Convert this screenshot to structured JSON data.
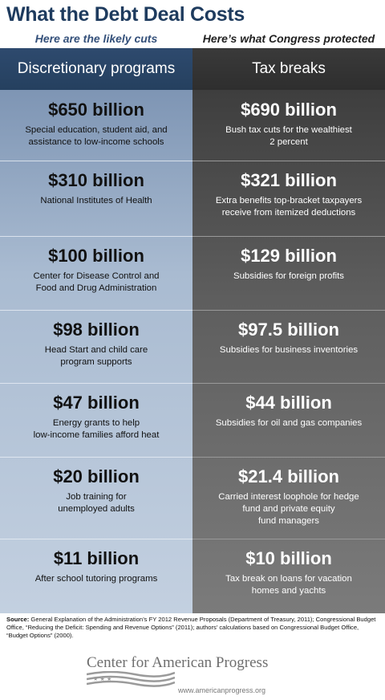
{
  "header": {
    "title": "What the Debt Deal Costs",
    "left_subhead": "Here are the likely cuts",
    "right_subhead": "Here’s what Congress protected",
    "left_column": "Discretionary programs",
    "right_column": "Tax breaks"
  },
  "chart_data": {
    "type": "table",
    "title": "What the Debt Deal Costs",
    "columns": [
      "Discretionary programs",
      "Tax breaks"
    ],
    "rows": [
      {
        "cut": {
          "amount": "$650 billion",
          "value_billion": 650,
          "desc": [
            "Special education, student aid, and",
            "assistance to low-income schools"
          ]
        },
        "protected": {
          "amount": "$690 billion",
          "value_billion": 690,
          "desc": [
            "Bush tax cuts for the wealthiest",
            "2 percent"
          ]
        }
      },
      {
        "cut": {
          "amount": "$310 billion",
          "value_billion": 310,
          "desc": [
            "National Institutes of Health"
          ]
        },
        "protected": {
          "amount": "$321 billion",
          "value_billion": 321,
          "desc": [
            "Extra benefits top-bracket taxpayers",
            "receive from itemized deductions"
          ]
        }
      },
      {
        "cut": {
          "amount": "$100 billion",
          "value_billion": 100,
          "desc": [
            "Center for Disease Control and",
            "Food and Drug Administration"
          ]
        },
        "protected": {
          "amount": "$129 billion",
          "value_billion": 129,
          "desc": [
            "Subsidies for foreign profits"
          ]
        }
      },
      {
        "cut": {
          "amount": "$98 billion",
          "value_billion": 98,
          "desc": [
            "Head Start and child care",
            "program supports"
          ]
        },
        "protected": {
          "amount": "$97.5 billion",
          "value_billion": 97.5,
          "desc": [
            "Subsidies for business inventories"
          ]
        }
      },
      {
        "cut": {
          "amount": "$47 billion",
          "value_billion": 47,
          "desc": [
            "Energy grants to help",
            "low-income families afford heat"
          ]
        },
        "protected": {
          "amount": "$44 billion",
          "value_billion": 44,
          "desc": [
            "Subsidies for oil and gas companies"
          ]
        }
      },
      {
        "cut": {
          "amount": "$20 billion",
          "value_billion": 20,
          "desc": [
            "Job training for",
            "unemployed adults"
          ]
        },
        "protected": {
          "amount": "$21.4 billion",
          "value_billion": 21.4,
          "desc": [
            "Carried interest loophole for hedge",
            "fund and private equity",
            "fund managers"
          ]
        }
      },
      {
        "cut": {
          "amount": "$11 billion",
          "value_billion": 11,
          "desc": [
            "After school tutoring programs"
          ]
        },
        "protected": {
          "amount": "$10 billion",
          "value_billion": 10,
          "desc": [
            "Tax break on loans for vacation",
            "homes and yachts"
          ]
        }
      }
    ]
  },
  "source": {
    "label": "Source:",
    "text": "General Explanation of the Administration’s FY 2012 Revenue Proposals (Department of Treasury, 2011); Congressional Budget Office, “Reducing the Deficit: Spending and Revenue Options” (2011); authors’ calculations based on Congressional Budget Office, “Budget Options” (2000)."
  },
  "footer": {
    "org": "Center for American Progress",
    "url": "www.americanprogress.org"
  },
  "colors": {
    "title": "#1e3b5e",
    "left_header": "#2e4a6e",
    "right_header": "#333333",
    "left_panel": "#b4c4d8",
    "right_panel": "#5e5e5e"
  }
}
